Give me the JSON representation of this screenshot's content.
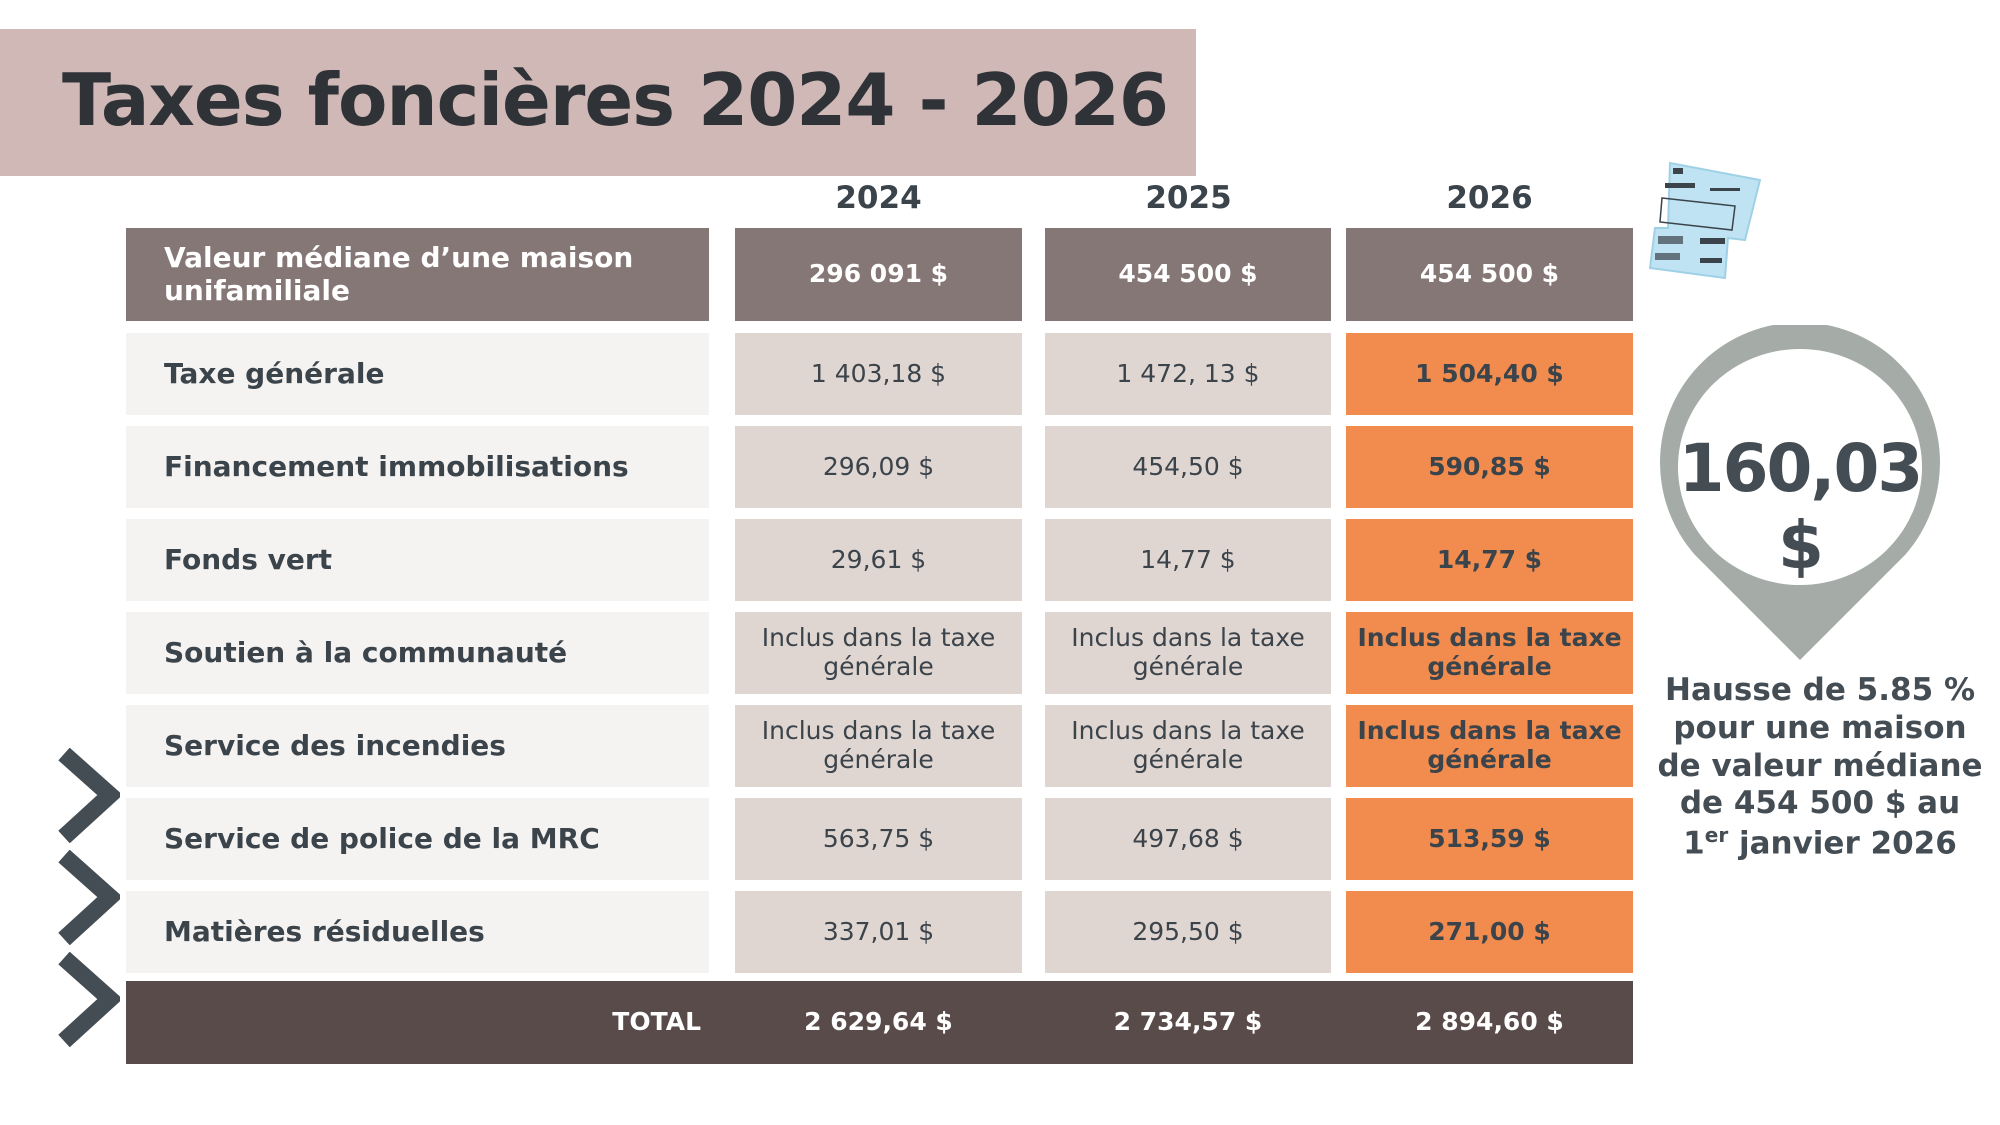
{
  "title": "Taxes foncières 2024 - 2026",
  "years": [
    "2024",
    "2025",
    "2026"
  ],
  "header_row": {
    "label": "Valeur médiane d’une maison unifamiliale",
    "values": [
      "296 091 $",
      "454 500 $",
      "454 500 $"
    ]
  },
  "rows": [
    {
      "label": "Taxe générale",
      "values": [
        "1 403,18 $",
        "1 472, 13 $",
        "1 504,40 $"
      ]
    },
    {
      "label": "Financement immobilisations",
      "values": [
        "296,09 $",
        "454,50 $",
        "590,85 $"
      ]
    },
    {
      "label": "Fonds vert",
      "values": [
        "29,61 $",
        "14,77 $",
        "14,77 $"
      ]
    },
    {
      "label": "Soutien à la communauté",
      "values": [
        "Inclus dans la taxe générale",
        "Inclus dans la taxe générale",
        "Inclus dans la taxe générale"
      ]
    },
    {
      "label": "Service des incendies",
      "values": [
        "Inclus dans la taxe générale",
        "Inclus dans la taxe générale",
        "Inclus dans la taxe générale"
      ]
    },
    {
      "label": "Service de police de la MRC",
      "values": [
        "563,75 $",
        "497,68 $",
        "513,59 $"
      ]
    },
    {
      "label": "Matières résiduelles",
      "values": [
        "337,01 $",
        "295,50 $",
        "271,00 $"
      ]
    }
  ],
  "total": {
    "label": "TOTAL",
    "values": [
      "2 629,64  $",
      "2 734,57  $",
      "2 894,60  $"
    ]
  },
  "highlight": {
    "amount": "160,03 $",
    "caption_main": "Hausse de 5.85 % pour une maison de valeur médiane de 454 500 $ au",
    "caption_day": "1",
    "caption_sup": "er",
    "caption_end": "janvier 2026"
  },
  "colors": {
    "title_band": "#cfb8b6",
    "header": "#857775",
    "cell": "#e0d6d1",
    "label_cell": "#f5f3f1",
    "highlight": "#f28c4e",
    "total": "#594b4a",
    "pin": "#a5aca8"
  },
  "icons": [
    "tax-bill-icon",
    "location-pin-icon",
    "chevron-right-icon"
  ]
}
